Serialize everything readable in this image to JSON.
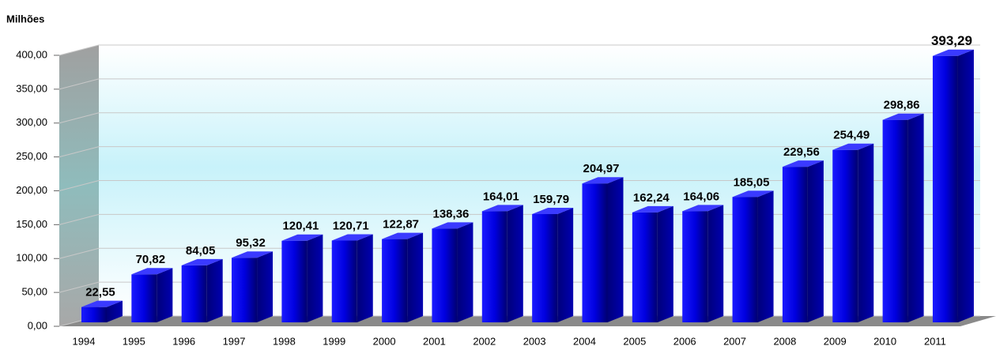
{
  "chart_data": {
    "type": "bar3d",
    "ylabel": "Milhões",
    "categories": [
      "1994",
      "1995",
      "1996",
      "1997",
      "1998",
      "1999",
      "2000",
      "2001",
      "2002",
      "2003",
      "2004",
      "2005",
      "2006",
      "2007",
      "2008",
      "2009",
      "2010",
      "2011"
    ],
    "values": [
      22.55,
      70.82,
      84.05,
      95.32,
      120.41,
      120.71,
      122.87,
      138.36,
      164.01,
      159.79,
      204.97,
      162.24,
      164.06,
      185.05,
      229.56,
      254.49,
      298.86,
      393.29
    ],
    "value_labels": [
      "22,55",
      "70,82",
      "84,05",
      "95,32",
      "120,41",
      "120,71",
      "122,87",
      "138,36",
      "164,01",
      "159,79",
      "204,97",
      "162,24",
      "164,06",
      "185,05",
      "229,56",
      "254,49",
      "298,86",
      "393,29"
    ],
    "color": "#0000ff",
    "ylim": [
      0,
      400
    ],
    "yticks": [
      {
        "value": 0,
        "label": "0,00"
      },
      {
        "value": 50,
        "label": "50,00"
      },
      {
        "value": 100,
        "label": "100,00"
      },
      {
        "value": 150,
        "label": "150,00"
      },
      {
        "value": 200,
        "label": "200,00"
      },
      {
        "value": 250,
        "label": "250,00"
      },
      {
        "value": 300,
        "label": "300,00"
      },
      {
        "value": 350,
        "label": "350,00"
      },
      {
        "value": 400,
        "label": "400,00"
      }
    ],
    "grid": true
  }
}
